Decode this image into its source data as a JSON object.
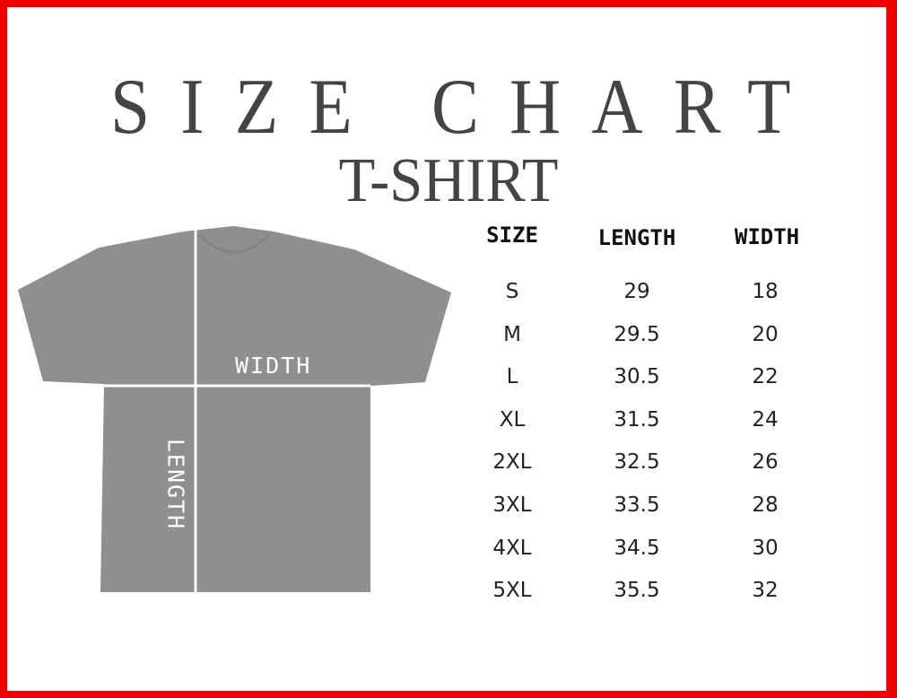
{
  "title": "SIZE CHART",
  "subtitle": "T-SHIRT",
  "diagram": {
    "width_label": "WIDTH",
    "length_label": "LENGTH",
    "shirt_color": "#8f8f8f"
  },
  "border_color": "#f20000",
  "table": {
    "headers": [
      "SIZE",
      "LENGTH",
      "WIDTH"
    ],
    "rows": [
      [
        "S",
        "29",
        "18"
      ],
      [
        "M",
        "29.5",
        "20"
      ],
      [
        "L",
        "30.5",
        "22"
      ],
      [
        "XL",
        "31.5",
        "24"
      ],
      [
        "2XL",
        "32.5",
        "26"
      ],
      [
        "3XL",
        "33.5",
        "28"
      ],
      [
        "4XL",
        "34.5",
        "30"
      ],
      [
        "5XL",
        "35.5",
        "32"
      ]
    ]
  }
}
